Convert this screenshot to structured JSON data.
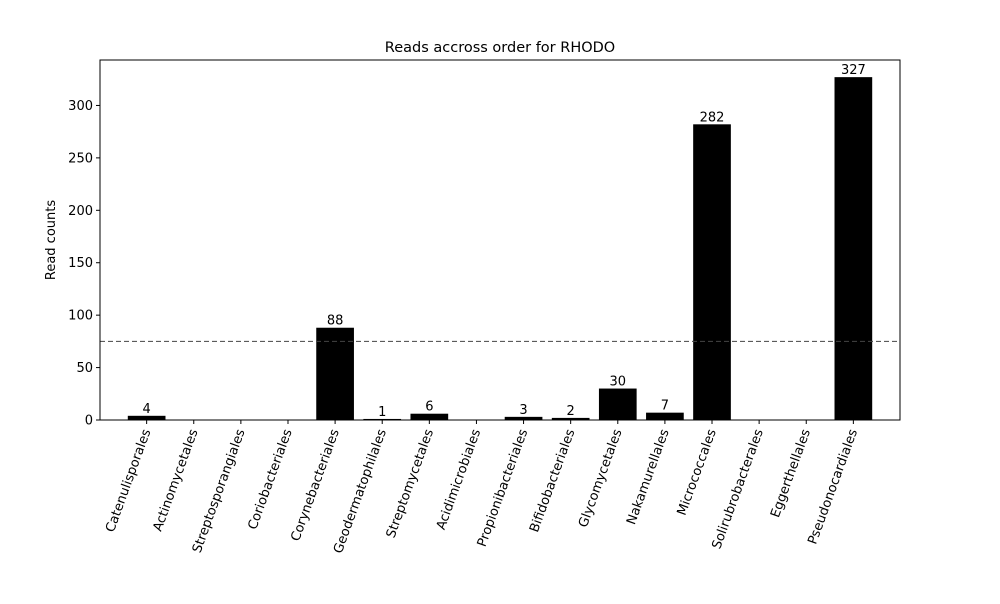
{
  "chart_data": {
    "type": "bar",
    "title": "Reads accross order for RHODO",
    "xlabel": "",
    "ylabel": "Read counts",
    "categories": [
      "Catenulisporales",
      "Actinomycetales",
      "Streptosporangiales",
      "Coriobacteriales",
      "Corynebacteriales",
      "Geodermatophilales",
      "Streptomycetales",
      "Acidimicrobiales",
      "Propionibacteriales",
      "Bifidobacteriales",
      "Glycomycetales",
      "Nakamurellales",
      "Micrococcales",
      "Solirubrobacterales",
      "Eggerthellales",
      "Pseudonocardiales"
    ],
    "values": [
      4,
      0,
      0,
      0,
      88,
      1,
      6,
      0,
      3,
      2,
      30,
      7,
      282,
      0,
      0,
      327
    ],
    "data_labels": [
      "4",
      "",
      "",
      "",
      "88",
      "1",
      "6",
      "",
      "3",
      "2",
      "30",
      "7",
      "282",
      "",
      "",
      "327"
    ],
    "ylim": [
      0,
      343.35
    ],
    "yticks": [
      0,
      50,
      100,
      150,
      200,
      250,
      300
    ],
    "threshold_line": 75,
    "bar_color": "#000000",
    "threshold_color": "#444444",
    "grid": false,
    "legend": "none"
  }
}
